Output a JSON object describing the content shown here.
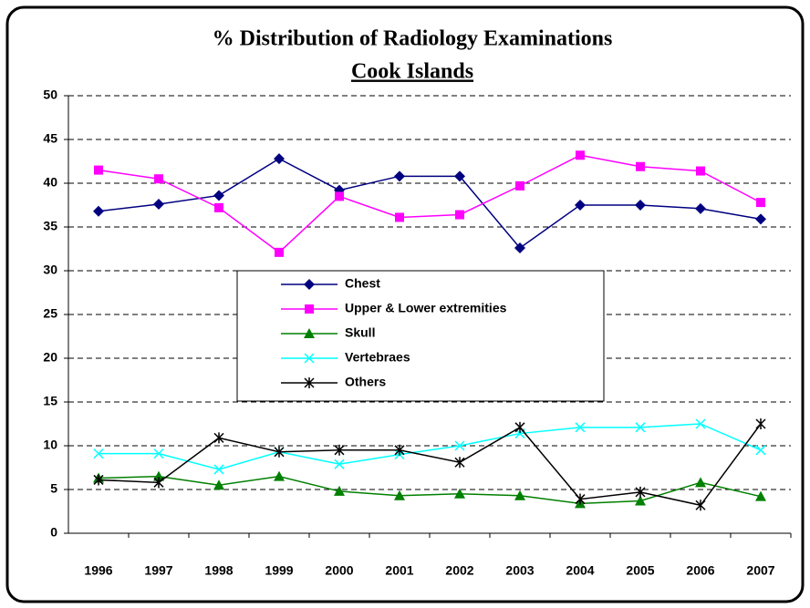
{
  "chart_data": {
    "type": "line",
    "title": "% Distribution of Radiology Examinations",
    "subtitle": "Cook Islands",
    "categories": [
      "1996",
      "1997",
      "1998",
      "1999",
      "2000",
      "2001",
      "2002",
      "2003",
      "2004",
      "2005",
      "2006",
      "2007"
    ],
    "series": [
      {
        "name": "Chest",
        "color": "#000080",
        "marker": "diamond",
        "values": [
          36.8,
          37.6,
          38.6,
          42.8,
          39.2,
          40.8,
          40.8,
          32.6,
          37.5,
          37.5,
          37.1,
          35.9
        ]
      },
      {
        "name": "Upper & Lower extremities",
        "color": "#ff00ff",
        "marker": "square",
        "values": [
          41.5,
          40.5,
          37.2,
          32.1,
          38.5,
          36.1,
          36.4,
          39.7,
          43.2,
          41.9,
          41.4,
          37.8
        ]
      },
      {
        "name": "Skull",
        "color": "#008000",
        "marker": "triangle",
        "values": [
          6.3,
          6.5,
          5.5,
          6.5,
          4.8,
          4.3,
          4.5,
          4.3,
          3.4,
          3.7,
          5.8,
          4.2
        ]
      },
      {
        "name": "Vertebraes",
        "color": "#00ffff",
        "marker": "x",
        "values": [
          9.1,
          9.1,
          7.3,
          9.3,
          7.9,
          9.0,
          10.0,
          11.4,
          12.1,
          12.1,
          12.5,
          9.5
        ]
      },
      {
        "name": "Others",
        "color": "#000000",
        "marker": "star",
        "values": [
          6.1,
          5.8,
          10.9,
          9.3,
          9.5,
          9.5,
          8.1,
          12.1,
          3.9,
          4.7,
          3.2,
          12.5
        ]
      }
    ],
    "ylim": [
      0,
      50
    ],
    "yticks": [
      0,
      5,
      10,
      15,
      20,
      25,
      30,
      35,
      40,
      45,
      50
    ],
    "grid": true
  }
}
